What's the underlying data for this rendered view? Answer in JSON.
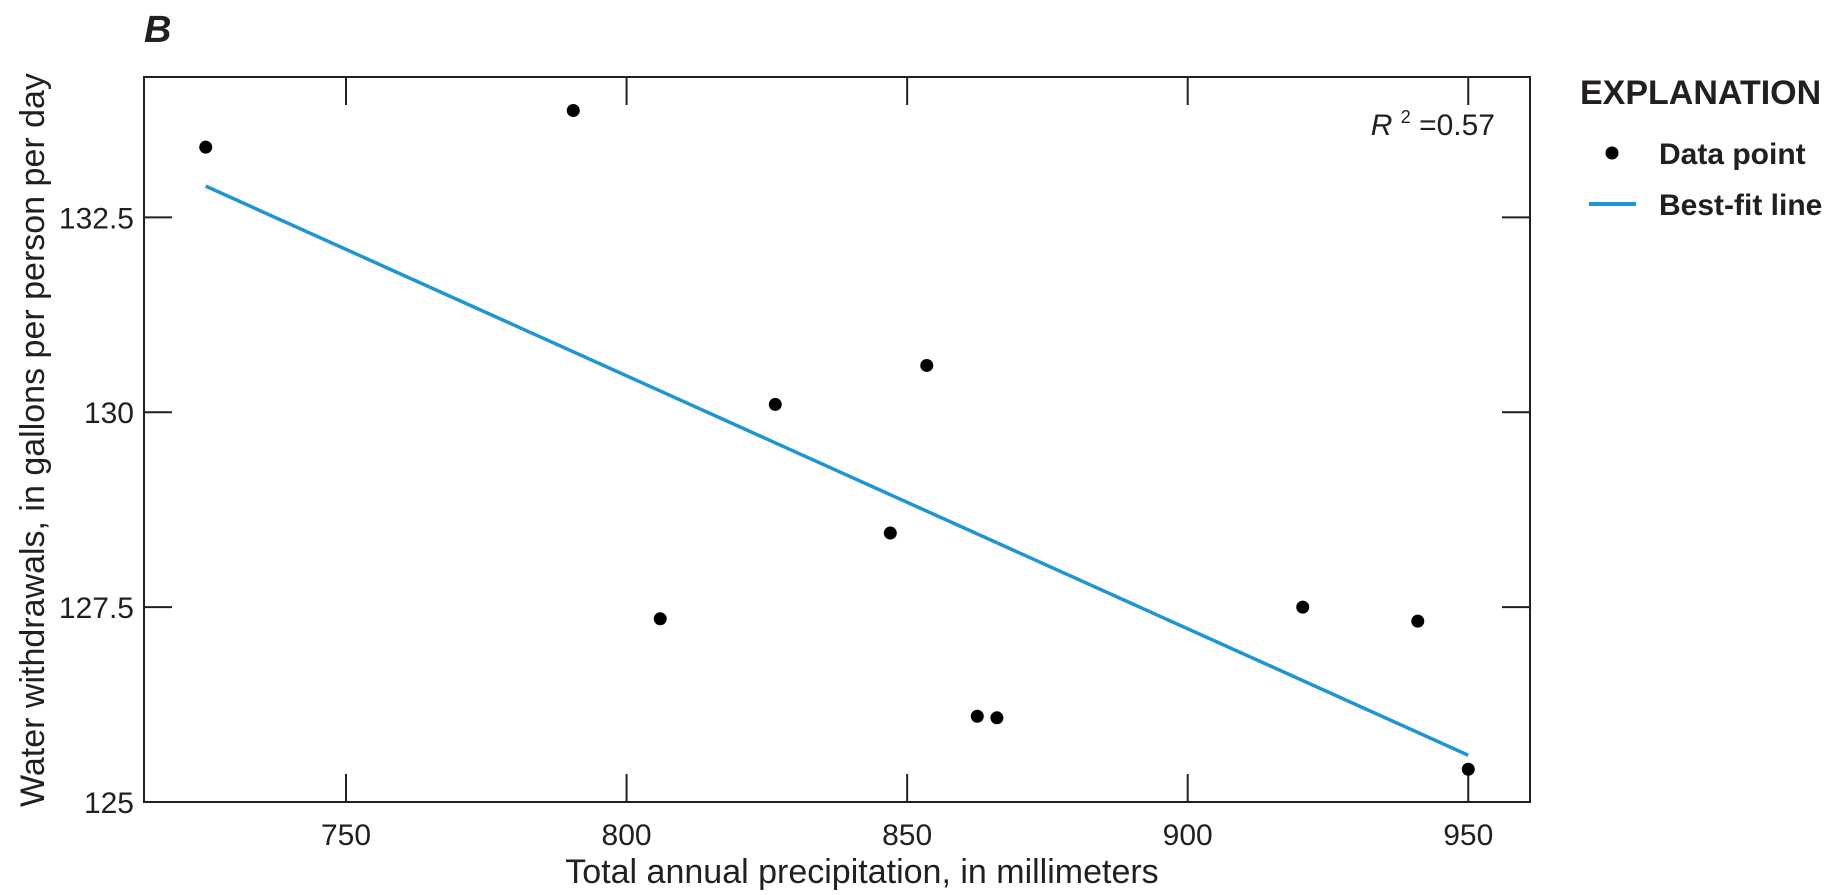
{
  "chart_data": {
    "type": "scatter",
    "panel_letter": "B",
    "xlabel": "Total annual precipitation, in millimeters",
    "ylabel": "Water withdrawals, in gallons per person per day",
    "xlim": [
      714,
      961
    ],
    "ylim": [
      125,
      134.3
    ],
    "x_ticks": [
      750,
      800,
      850,
      900,
      950
    ],
    "x_tick_labels": [
      "750",
      "800",
      "850",
      "900",
      "950"
    ],
    "y_ticks": [
      125,
      127.5,
      130,
      132.5
    ],
    "y_tick_labels": [
      "125",
      "127.5",
      "130",
      "132.5"
    ],
    "grid": false,
    "legend": {
      "title": "EXPLANATION",
      "placement": "right",
      "entries": [
        {
          "label": "Data point",
          "kind": "marker"
        },
        {
          "label": "Best-fit line",
          "kind": "line"
        }
      ]
    },
    "annotation": {
      "r_symbol": "R",
      "r_superscript": "2",
      "r_value": "=0.57"
    },
    "points": {
      "x": [
        725,
        790.5,
        806,
        826.5,
        847,
        853.5,
        862.5,
        866,
        920.5,
        941,
        950
      ],
      "y": [
        133.4,
        133.87,
        127.35,
        130.1,
        128.45,
        130.6,
        126.1,
        126.08,
        127.5,
        127.32,
        125.42
      ]
    },
    "best_fit": {
      "x": [
        725,
        950
      ],
      "y": [
        132.9,
        125.6
      ]
    },
    "colors": {
      "points": "#000000",
      "best_fit": "#1f96d1",
      "axes": "#231f20"
    }
  }
}
